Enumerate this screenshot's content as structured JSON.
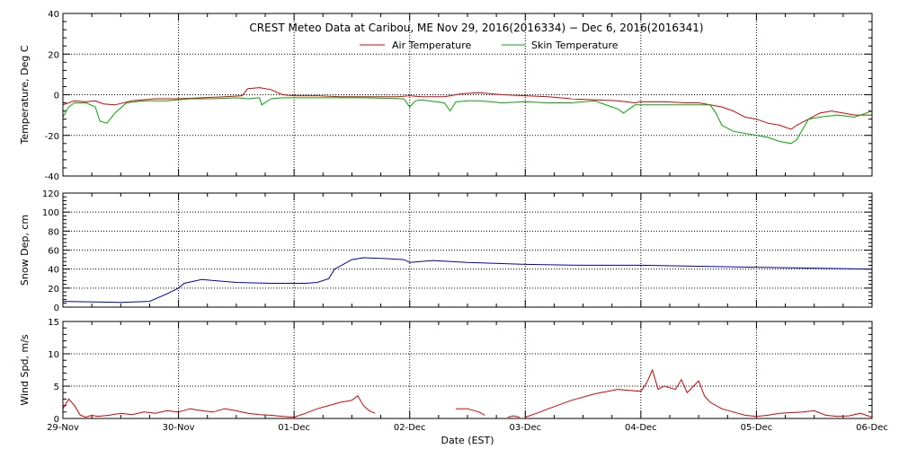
{
  "chart_data": {
    "title": "CREST Meteo Data at Caribou, ME    Nov 29, 2016(2016334) − Dec  6, 2016(2016341)",
    "xlabel": "Date (EST)",
    "x_ticks": [
      "29-Nov",
      "30-Nov",
      "01-Dec",
      "02-Dec",
      "03-Dec",
      "04-Dec",
      "05-Dec",
      "06-Dec"
    ],
    "x_range_days": [
      0,
      7
    ],
    "grid": true,
    "legend_placement": "top-center",
    "panels": [
      {
        "type": "line",
        "ylabel": "Temperature, Deg C",
        "ylim": [
          -40,
          40
        ],
        "yticks": [
          -40,
          -20,
          0,
          20,
          40
        ],
        "series": [
          {
            "name": "Air Temperature",
            "color": "#dd0000",
            "x": [
              0,
              0.1,
              0.2,
              0.28,
              0.35,
              0.45,
              0.6,
              0.8,
              1.0,
              1.2,
              1.4,
              1.55,
              1.6,
              1.7,
              1.8,
              1.9,
              2.0,
              2.2,
              2.4,
              2.6,
              2.9,
              3.0,
              3.1,
              3.3,
              3.45,
              3.6,
              3.8,
              4.0,
              4.2,
              4.4,
              4.6,
              4.8,
              4.95,
              5.0,
              5.2,
              5.4,
              5.5,
              5.6,
              5.7,
              5.8,
              5.9,
              6.0,
              6.1,
              6.2,
              6.3,
              6.35,
              6.45,
              6.55,
              6.65,
              6.75,
              6.85,
              7.0
            ],
            "y": [
              -5,
              -3,
              -3.5,
              -3,
              -4.5,
              -5,
              -3,
              -2,
              -2,
              -1.5,
              -1,
              -0.5,
              3,
              3.5,
              2.5,
              0,
              -0.5,
              -0.5,
              -1,
              -1,
              -1,
              -0.5,
              -1,
              -1,
              0.5,
              1,
              0,
              -0.5,
              -1,
              -2,
              -2.5,
              -3,
              -4,
              -3.5,
              -3.5,
              -4,
              -4,
              -5,
              -6,
              -8,
              -11,
              -12,
              -14,
              -15,
              -17,
              -15,
              -12,
              -9,
              -8,
              -9,
              -10,
              -10
            ]
          },
          {
            "name": "Skin Temperature",
            "color": "#00aa00",
            "x": [
              0,
              0.05,
              0.1,
              0.2,
              0.28,
              0.32,
              0.38,
              0.45,
              0.55,
              0.7,
              0.9,
              1.1,
              1.3,
              1.5,
              1.6,
              1.7,
              1.72,
              1.8,
              1.9,
              2.0,
              2.2,
              2.4,
              2.6,
              2.95,
              3.0,
              3.05,
              3.1,
              3.3,
              3.35,
              3.4,
              3.5,
              3.6,
              3.8,
              4.0,
              4.2,
              4.4,
              4.6,
              4.75,
              4.8,
              4.85,
              4.95,
              5.1,
              5.3,
              5.5,
              5.6,
              5.65,
              5.7,
              5.8,
              6.0,
              6.1,
              6.2,
              6.3,
              6.35,
              6.45,
              6.55,
              6.7,
              6.85,
              7.0
            ],
            "y": [
              -11,
              -6,
              -4,
              -4,
              -6,
              -13,
              -14,
              -9,
              -4,
              -3,
              -3,
              -2,
              -2,
              -1.5,
              -2,
              -1.5,
              -5,
              -2,
              -1.5,
              -1.5,
              -1.5,
              -1.5,
              -1.5,
              -2,
              -6,
              -3,
              -2.5,
              -4,
              -8,
              -3.5,
              -3,
              -3,
              -4,
              -3.5,
              -4,
              -4,
              -3,
              -6,
              -7,
              -9,
              -5,
              -5,
              -5,
              -5,
              -5,
              -9,
              -15,
              -18,
              -20,
              -21,
              -23,
              -24,
              -22,
              -12,
              -11,
              -10,
              -11,
              -8
            ]
          }
        ]
      },
      {
        "type": "line",
        "ylabel": "Snow Dep, cm",
        "ylim": [
          0,
          120
        ],
        "yticks": [
          0,
          20,
          40,
          60,
          80,
          100,
          120
        ],
        "series": [
          {
            "name": "",
            "color": "#0000bb",
            "x": [
              0,
              0.5,
              0.75,
              0.9,
              1.0,
              1.05,
              1.2,
              1.3,
              1.5,
              1.8,
              2.0,
              2.1,
              2.2,
              2.3,
              2.35,
              2.5,
              2.6,
              2.8,
              2.95,
              3.0,
              3.2,
              3.5,
              4.0,
              4.5,
              5.0,
              5.5,
              6.0,
              6.5,
              7.0
            ],
            "y": [
              6,
              5,
              6,
              14,
              20,
              25,
              29,
              28,
              26,
              25,
              25,
              25,
              26,
              30,
              40,
              50,
              52,
              51,
              50,
              47,
              49,
              47,
              45,
              44,
              44,
              43,
              42,
              41,
              40
            ]
          }
        ]
      },
      {
        "type": "line",
        "ylabel": "Wind Spd, m/s",
        "ylim": [
          0,
          15
        ],
        "yticks": [
          0,
          5,
          10,
          15
        ],
        "series": [
          {
            "name": "",
            "color": "#dd0000",
            "segments": [
              {
                "x": [
                  0,
                  0.05,
                  0.1,
                  0.15,
                  0.2,
                  0.25,
                  0.3,
                  0.4,
                  0.5,
                  0.6,
                  0.7,
                  0.8,
                  0.9,
                  1.0,
                  1.1,
                  1.2,
                  1.3,
                  1.4,
                  1.5,
                  1.6,
                  1.7,
                  1.8,
                  1.9,
                  2.0
                ],
                "y": [
                  1.5,
                  3,
                  2,
                  0.5,
                  0.2,
                  0.5,
                  0.3,
                  0.5,
                  0.8,
                  0.6,
                  1.0,
                  0.8,
                  1.2,
                  1.0,
                  1.5,
                  1.2,
                  1.0,
                  1.5,
                  1.2,
                  0.8,
                  0.6,
                  0.5,
                  0.3,
                  0.2
                ]
              },
              {
                "x": [
                  2.0,
                  2.1,
                  2.2,
                  2.3,
                  2.4,
                  2.5,
                  2.55,
                  2.6,
                  2.65,
                  2.7
                ],
                "y": [
                  0.2,
                  0.8,
                  1.5,
                  2.0,
                  2.5,
                  2.8,
                  3.5,
                  2.0,
                  1.2,
                  0.8
                ]
              },
              {
                "x": [
                  3.4,
                  3.5,
                  3.6,
                  3.65
                ],
                "y": [
                  1.5,
                  1.5,
                  1.0,
                  0.5
                ]
              },
              {
                "x": [
                  3.85,
                  3.9,
                  3.95
                ],
                "y": [
                  0.2,
                  0.4,
                  0.2
                ]
              },
              {
                "x": [
                  4.0,
                  4.1,
                  4.2,
                  4.4,
                  4.6,
                  4.8,
                  5.0,
                  5.05,
                  5.1,
                  5.15,
                  5.2,
                  5.3,
                  5.35,
                  5.4,
                  5.5,
                  5.55,
                  5.6,
                  5.7,
                  5.8,
                  5.9,
                  6.0,
                  6.1,
                  6.2,
                  6.4,
                  6.5,
                  6.6,
                  6.7,
                  6.8,
                  6.9,
                  7.0
                ],
                "y": [
                  0.2,
                  0.8,
                  1.5,
                  2.8,
                  3.8,
                  4.5,
                  4.2,
                  5.5,
                  7.5,
                  4.5,
                  5.0,
                  4.5,
                  6.0,
                  4.0,
                  5.8,
                  3.5,
                  2.5,
                  1.5,
                  1.0,
                  0.5,
                  0.3,
                  0.5,
                  0.8,
                  1.0,
                  1.2,
                  0.5,
                  0.3,
                  0.4,
                  0.8,
                  0.2
                ]
              }
            ]
          }
        ]
      }
    ]
  }
}
